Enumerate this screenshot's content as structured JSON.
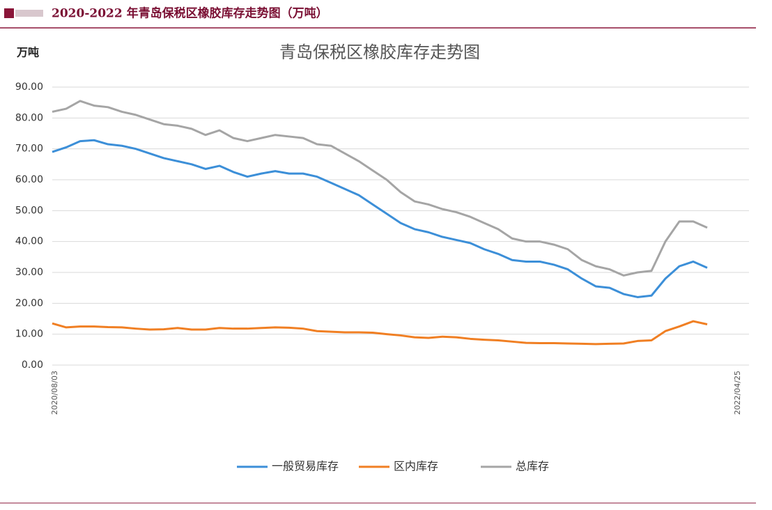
{
  "header": {
    "title": "2020-2022 年青岛保税区橡胶库存走势图（万吨）"
  },
  "chart_data": {
    "type": "line",
    "title": "青岛保税区橡胶库存走势图",
    "y_label": "万吨",
    "categories": [
      "2020/08/03",
      null,
      null,
      null,
      null,
      null,
      null,
      null,
      null,
      null,
      null,
      null,
      null,
      null,
      null,
      null,
      null,
      null,
      null,
      null,
      null,
      null,
      null,
      null,
      null,
      null,
      null,
      null,
      null,
      null,
      null,
      null,
      null,
      null,
      null,
      null,
      null,
      null,
      null,
      null,
      null,
      null,
      null,
      null,
      null,
      null,
      null,
      null,
      null,
      "2022/04/25"
    ],
    "series": [
      {
        "name": "一般贸易库存",
        "color": "#3c8fd8",
        "values": [
          69,
          70.5,
          72.5,
          72.8,
          71.5,
          71,
          70,
          68.5,
          67,
          66,
          65,
          63.5,
          64.5,
          62.5,
          61,
          62,
          62.8,
          62,
          62,
          61,
          59,
          57,
          55,
          52,
          49,
          46,
          44,
          43,
          41.5,
          40.5,
          39.5,
          37.5,
          36,
          34,
          33.5,
          33.5,
          32.5,
          31,
          28,
          25.5,
          25,
          23,
          22,
          22.5,
          28,
          32,
          33.5,
          31.5,
          null,
          null
        ]
      },
      {
        "name": "区内库存",
        "color": "#f07f23",
        "values": [
          13.5,
          12.2,
          12.5,
          12.5,
          12.3,
          12.2,
          11.8,
          11.5,
          11.6,
          12,
          11.5,
          11.5,
          12,
          11.8,
          11.8,
          12,
          12.2,
          12.1,
          11.8,
          11,
          10.8,
          10.6,
          10.6,
          10.5,
          10,
          9.6,
          9,
          8.8,
          9.2,
          9,
          8.5,
          8.2,
          8,
          7.6,
          7.2,
          7.1,
          7.1,
          7,
          6.9,
          6.8,
          6.9,
          7,
          7.8,
          8,
          11,
          12.5,
          14.2,
          13.2,
          null,
          null
        ]
      },
      {
        "name": "总库存",
        "color": "#a5a5a5",
        "values": [
          82,
          83,
          85.5,
          84,
          83.5,
          82,
          81,
          79.5,
          78,
          77.5,
          76.5,
          74.5,
          76,
          73.5,
          72.5,
          73.5,
          74.5,
          74,
          73.5,
          71.5,
          71,
          68.5,
          66,
          63,
          60,
          56,
          53,
          52,
          50.5,
          49.5,
          48,
          46,
          44,
          41,
          40,
          40,
          39,
          37.5,
          34,
          32,
          31,
          29,
          30,
          30.5,
          40,
          46.5,
          46.5,
          44.5,
          null,
          null
        ]
      }
    ],
    "ylim": [
      0,
      90
    ],
    "yticks": [
      {
        "value": 0,
        "label": "0.00"
      },
      {
        "value": 10,
        "label": "10.00"
      },
      {
        "value": 20,
        "label": "20.00"
      },
      {
        "value": 30,
        "label": "30.00"
      },
      {
        "value": 40,
        "label": "40.00"
      },
      {
        "value": 50,
        "label": "50.00"
      },
      {
        "value": 60,
        "label": "60.00"
      },
      {
        "value": 70,
        "label": "70.00"
      },
      {
        "value": 80,
        "label": "80.00"
      },
      {
        "value": 90,
        "label": "90.00"
      }
    ],
    "grid": true,
    "legend": "bottom"
  }
}
